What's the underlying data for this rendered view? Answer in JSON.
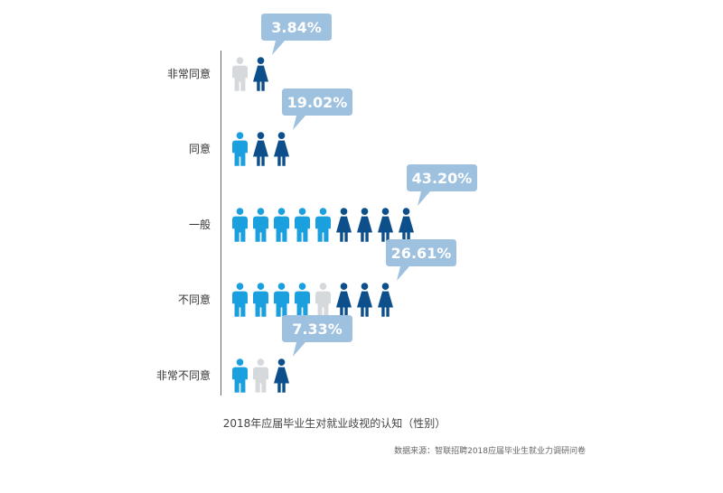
{
  "chart_data": {
    "type": "pictograph",
    "title": "2018年应届毕业生对就业歧视的认知（性别）",
    "categories": [
      "非常同意",
      "同意",
      "一般",
      "不同意",
      "非常不同意"
    ],
    "values": [
      3.84,
      19.02,
      43.2,
      26.61,
      7.33
    ],
    "value_labels": [
      "3.84%",
      "19.02%",
      "43.20%",
      "26.61%",
      "7.33%"
    ],
    "icons": [
      {
        "male": 0.5,
        "female": 1
      },
      {
        "male": 1,
        "female": 2
      },
      {
        "male": 5,
        "female": 4
      },
      {
        "male": 4.5,
        "female": 3
      },
      {
        "male": 1.5,
        "female": 1
      }
    ],
    "unit": "%"
  },
  "source": "数据来源：智联招聘2018应届毕业生就业力调研问卷",
  "colors": {
    "male": "#1aa0de",
    "female": "#0d4f8b",
    "icon_empty": "#d6d9dc",
    "bubble": "#9fc1e0",
    "axis": "#666666"
  },
  "icon_names": [
    "male-person-icon",
    "female-person-icon"
  ]
}
